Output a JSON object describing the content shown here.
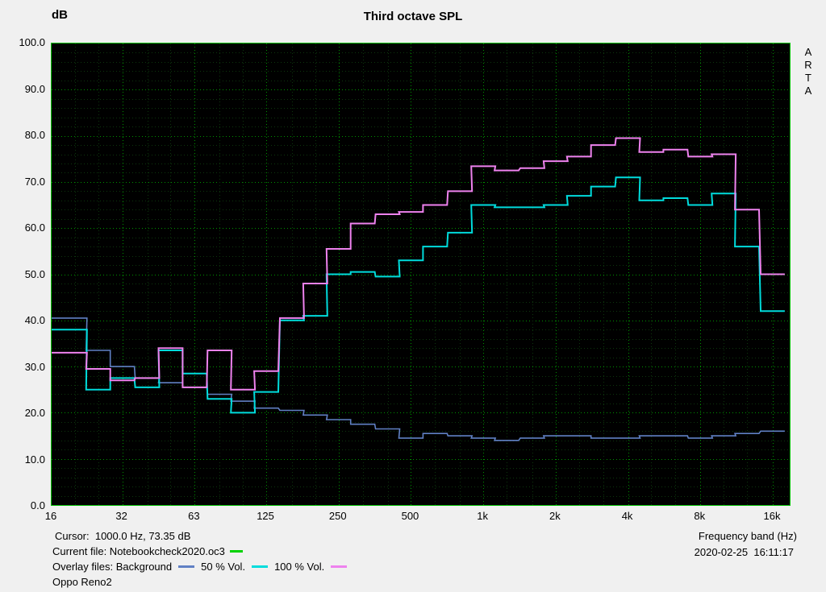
{
  "header": {
    "y_unit": "dB",
    "title": "Third octave SPL",
    "logo": "ARTA"
  },
  "axes": {
    "y_ticks": [
      "100.0",
      "90.0",
      "80.0",
      "70.0",
      "60.0",
      "50.0",
      "40.0",
      "30.0",
      "20.0",
      "10.0",
      "0.0"
    ],
    "x_ticks": [
      {
        "label": "16",
        "f": 16
      },
      {
        "label": "32",
        "f": 31.5
      },
      {
        "label": "63",
        "f": 63
      },
      {
        "label": "125",
        "f": 125
      },
      {
        "label": "250",
        "f": 250
      },
      {
        "label": "500",
        "f": 500
      },
      {
        "label": "1k",
        "f": 1000
      },
      {
        "label": "2k",
        "f": 2000
      },
      {
        "label": "4k",
        "f": 4000
      },
      {
        "label": "8k",
        "f": 8000
      },
      {
        "label": "16k",
        "f": 16000
      }
    ]
  },
  "footer": {
    "cursor": "Cursor:  1000.0 Hz, 73.35 dB",
    "current_file_label": "Current file: Notebookcheck2020.oc3",
    "overlay_label": "Overlay files: Background",
    "overlay_50": "50 % Vol.",
    "overlay_100": "100 % Vol.",
    "device": "Oppo Reno2",
    "freq_axis_label": "Frequency band (Hz)",
    "datetime": "2020-02-25  16:11:17"
  },
  "colors": {
    "background_curve": "#6080c4",
    "vol50": "#00dcdc",
    "vol100": "#ee82ee",
    "current_file": "#00d200",
    "grid_major": "#009300",
    "grid_minor": "#0d360d",
    "plot_border": "#00c000",
    "plot_bg": "#000000"
  },
  "chart_data": {
    "type": "line",
    "subtype": "third-octave-step",
    "title": "Third octave SPL",
    "ylabel": "dB",
    "xlabel": "Frequency band (Hz)",
    "ylim": [
      0,
      100
    ],
    "grid": true,
    "legend_position": "bottom",
    "frequencies": [
      16,
      20,
      25,
      31.5,
      40,
      50,
      63,
      80,
      100,
      125,
      160,
      200,
      250,
      315,
      400,
      500,
      630,
      800,
      1000,
      1250,
      1600,
      2000,
      2500,
      3150,
      4000,
      5000,
      6300,
      8000,
      10000,
      12500,
      16000
    ],
    "series": [
      {
        "name": "Background",
        "color_key": "background_curve",
        "values": [
          40.5,
          40.5,
          33.5,
          30,
          27.5,
          26.5,
          25.5,
          24,
          22.5,
          21,
          20.5,
          19.5,
          18.5,
          17.5,
          16.5,
          14.5,
          15.5,
          15,
          14.5,
          14,
          14.5,
          15,
          15,
          14.5,
          14.5,
          15,
          15,
          14.5,
          15,
          15.5,
          16
        ]
      },
      {
        "name": "50 % Vol.",
        "color_key": "vol50",
        "values": [
          38,
          38,
          25,
          27.5,
          25.5,
          33.5,
          28.5,
          23,
          20,
          24.5,
          40,
          41,
          50,
          50.5,
          49.5,
          53,
          56,
          59,
          65,
          64.5,
          64.5,
          65,
          67,
          69,
          71,
          66,
          66.5,
          65,
          67.5,
          56,
          42
        ]
      },
      {
        "name": "100 % Vol.",
        "color_key": "vol100",
        "values": [
          33,
          33,
          29.5,
          27,
          27.5,
          34,
          25.5,
          33.5,
          25,
          29,
          40.5,
          48,
          55.5,
          61,
          63,
          63.5,
          65,
          68,
          73.4,
          72.5,
          73,
          74.5,
          75.5,
          78,
          79.5,
          76.5,
          77,
          75.5,
          76,
          64,
          50
        ]
      }
    ],
    "cursor": {
      "frequency_hz": 1000.0,
      "spl_db": 73.35
    }
  }
}
